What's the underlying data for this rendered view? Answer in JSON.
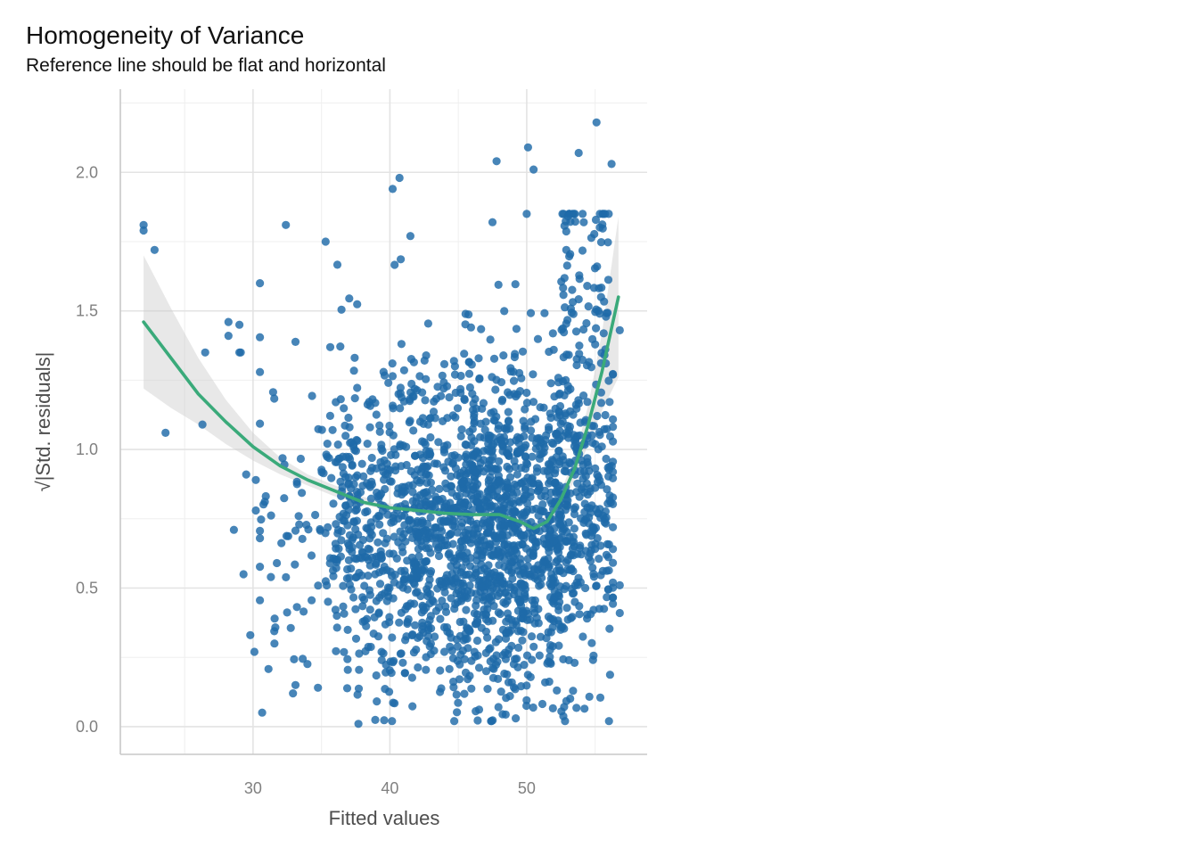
{
  "chart_data": {
    "type": "scatter",
    "title": "Homogeneity of Variance",
    "subtitle": "Reference line should be flat and horizontal",
    "xlabel": "Fitted values",
    "ylabel": "√|Std. residuals|",
    "xlim": [
      20.3,
      58.8
    ],
    "ylim": [
      -0.1,
      2.3
    ],
    "x_ticks": [
      30,
      40,
      50
    ],
    "x_tick_labels": [
      "30",
      "40",
      "50"
    ],
    "y_ticks": [
      0,
      0.5,
      1,
      1.5,
      2
    ],
    "y_tick_labels": [
      "0.0",
      "0.5",
      "1.0",
      "1.5",
      "2.0"
    ],
    "grid": true,
    "point_color": "#1f6aa8",
    "line_color": "#3aaa7a",
    "band_color": "#cccccc",
    "n_points": 2200,
    "points_note": "dense cloud concentrated around fitted 43-55, residual 0.1-1.4",
    "notable_points": [
      [
        22.0,
        1.81
      ],
      [
        22.0,
        1.79
      ],
      [
        22.8,
        1.72
      ],
      [
        23.6,
        1.06
      ],
      [
        26.3,
        1.09
      ],
      [
        26.5,
        1.35
      ],
      [
        28.2,
        1.46
      ],
      [
        28.2,
        1.41
      ],
      [
        28.6,
        0.71
      ],
      [
        29.0,
        1.45
      ],
      [
        29.0,
        1.35
      ],
      [
        29.1,
        1.35
      ],
      [
        29.3,
        0.55
      ],
      [
        29.5,
        0.91
      ],
      [
        29.8,
        0.33
      ],
      [
        30.1,
        0.27
      ],
      [
        30.2,
        0.78
      ],
      [
        30.2,
        0.89
      ],
      [
        30.5,
        1.6
      ],
      [
        31.3,
        0.54
      ],
      [
        32.4,
        1.81
      ],
      [
        33.1,
        0.15
      ],
      [
        35.3,
        1.75
      ],
      [
        37.7,
        0.01
      ],
      [
        40.2,
        1.94
      ],
      [
        40.7,
        1.98
      ],
      [
        41.5,
        1.77
      ],
      [
        47.5,
        1.82
      ],
      [
        47.8,
        2.04
      ],
      [
        50.0,
        1.85
      ],
      [
        50.1,
        2.09
      ],
      [
        50.5,
        2.01
      ],
      [
        53.8,
        2.07
      ],
      [
        55.1,
        2.18
      ],
      [
        56.2,
        2.03
      ],
      [
        56.8,
        0.51
      ],
      [
        56.8,
        0.41
      ],
      [
        56.8,
        1.43
      ],
      [
        49.2,
        0.03
      ],
      [
        52.8,
        0.02
      ],
      [
        44.7,
        0.02
      ]
    ],
    "loess_x": [
      22.0,
      24.0,
      26.0,
      28.0,
      30.0,
      32.0,
      34.0,
      36.0,
      38.0,
      40.0,
      42.0,
      44.0,
      46.0,
      48.0,
      49.5,
      50.5,
      51.5,
      52.5,
      53.5,
      54.5,
      55.5,
      56.7
    ],
    "loess_y": [
      1.46,
      1.33,
      1.2,
      1.1,
      1.01,
      0.94,
      0.89,
      0.85,
      0.81,
      0.79,
      0.78,
      0.77,
      0.765,
      0.765,
      0.74,
      0.715,
      0.74,
      0.82,
      0.93,
      1.09,
      1.28,
      1.55
    ],
    "band_lower": [
      1.22,
      1.15,
      1.09,
      1.02,
      0.96,
      0.91,
      0.87,
      0.83,
      0.8,
      0.78,
      0.77,
      0.76,
      0.755,
      0.752,
      0.725,
      0.698,
      0.718,
      0.79,
      0.89,
      1.02,
      1.14,
      1.26
    ],
    "band_upper": [
      1.7,
      1.51,
      1.33,
      1.18,
      1.06,
      0.97,
      0.91,
      0.87,
      0.83,
      0.805,
      0.79,
      0.78,
      0.775,
      0.778,
      0.755,
      0.732,
      0.762,
      0.85,
      0.97,
      1.16,
      1.42,
      1.84
    ]
  }
}
